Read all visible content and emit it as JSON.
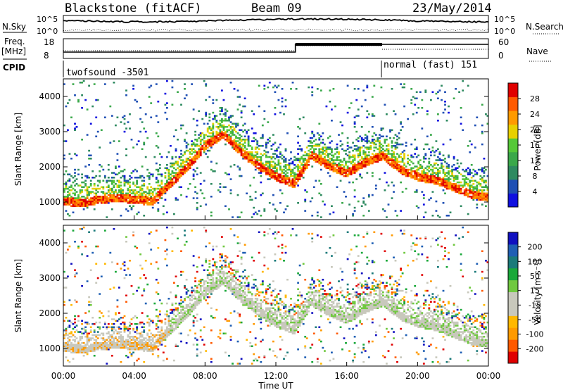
{
  "header": {
    "station": "Blackstone (fitACF)",
    "beam": "Beam 09",
    "date": "23/May/2014"
  },
  "side_labels": {
    "nsky": "N.Sky",
    "nsearch": "N.Search",
    "freq": "Freq.",
    "freq_unit": "[MHz]",
    "nave": "Nave",
    "cpid": "CPID"
  },
  "noise_axis": {
    "top": "10^5",
    "bottom": "10^0"
  },
  "freq_axis": {
    "top": "18",
    "bottom": "8"
  },
  "nave_axis": {
    "top": "60",
    "bottom": "0"
  },
  "cpid_modes": [
    {
      "label": "twofsound  -3501",
      "start_hour": 0
    },
    {
      "label": "normal (fast) 151",
      "start_hour": 18
    }
  ],
  "colors": {
    "power": [
      "#1010e0",
      "#1f4fb4",
      "#2e8a60",
      "#3aa84a",
      "#55c838",
      "#e8d000",
      "#ff9a00",
      "#ff5a00",
      "#e00000"
    ],
    "velocity": [
      "#e00000",
      "#ff5a00",
      "#ff9a00",
      "#ffb800",
      "#c8c8bc",
      "#c8c8bc",
      "#70c840",
      "#1aa83a",
      "#1a7a7a",
      "#1f5fb4",
      "#1010c0"
    ]
  },
  "chart_data": [
    {
      "type": "heatmap",
      "title": "Power",
      "ylabel": "Slant Range [km]",
      "xlabel": "Time UT",
      "x_ticks": [
        "00:00",
        "04:00",
        "08:00",
        "12:00",
        "16:00",
        "20:00",
        "00:00"
      ],
      "x_range_hours": [
        0,
        24
      ],
      "y_ticks": [
        "1000",
        "2000",
        "3000",
        "4000"
      ],
      "ylim": [
        500,
        4500
      ],
      "colorbar_label": "Power [dB]",
      "colorbar_ticks": [
        "4",
        "8",
        "12",
        "16",
        "20",
        "24",
        "28"
      ],
      "colorbar_range": [
        0,
        30
      ],
      "echo_band_range_km": [
        [
          0,
          1000
        ],
        [
          1,
          950
        ],
        [
          2,
          1050
        ],
        [
          3,
          1100
        ],
        [
          4,
          1050
        ],
        [
          5,
          1000
        ],
        [
          6,
          1500
        ],
        [
          7,
          2000
        ],
        [
          8,
          2600
        ],
        [
          9,
          2900
        ],
        [
          10,
          2400
        ],
        [
          11,
          2000
        ],
        [
          12,
          1700
        ],
        [
          13,
          1500
        ],
        [
          14,
          2300
        ],
        [
          15,
          2000
        ],
        [
          16,
          1800
        ],
        [
          17,
          2100
        ],
        [
          18,
          2300
        ],
        [
          19,
          1900
        ],
        [
          20,
          1700
        ],
        [
          21,
          1600
        ],
        [
          22,
          1400
        ],
        [
          23,
          1200
        ],
        [
          24,
          1100
        ]
      ]
    },
    {
      "type": "heatmap",
      "title": "Velocity",
      "ylabel": "Slant Range [km]",
      "xlabel": "Time UT",
      "x_ticks": [
        "00:00",
        "04:00",
        "08:00",
        "12:00",
        "16:00",
        "20:00",
        "00:00"
      ],
      "x_range_hours": [
        0,
        24
      ],
      "y_ticks": [
        "1000",
        "2000",
        "3000",
        "4000"
      ],
      "ylim": [
        500,
        4500
      ],
      "colorbar_label": "Velocity [m s⁻¹]",
      "colorbar_ticks": [
        "200",
        "100",
        "50",
        "15",
        "-15",
        "-50",
        "-100",
        "-200"
      ],
      "colorbar_range": [
        -250,
        250
      ]
    }
  ],
  "footer": {
    "xlabel": "Time UT"
  }
}
